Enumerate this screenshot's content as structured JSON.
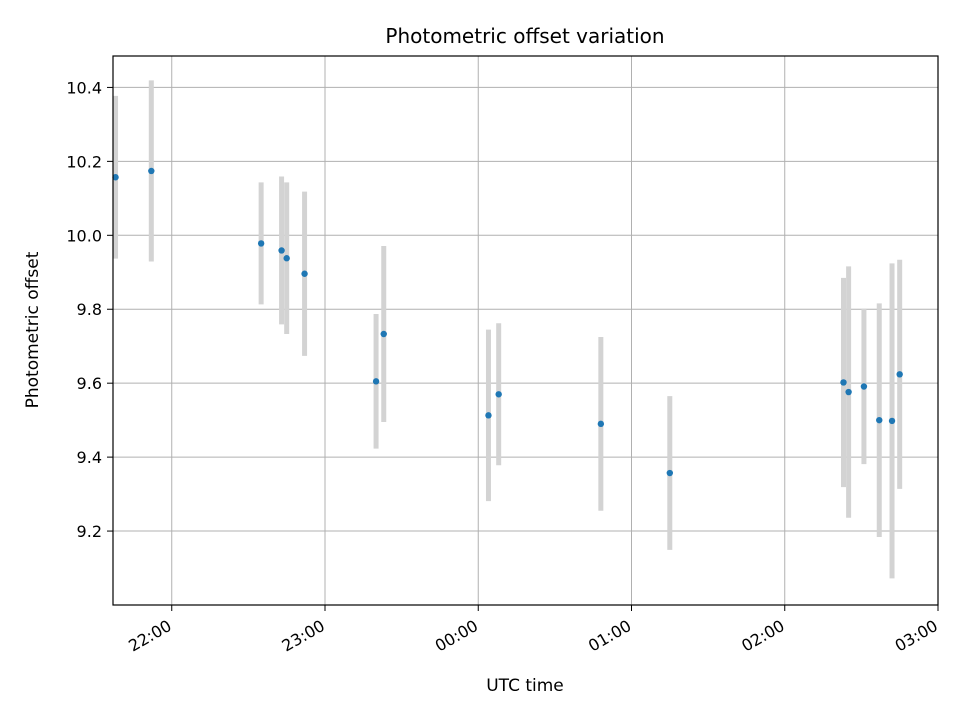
{
  "chart_data": {
    "type": "scatter",
    "title": "Photometric offset variation",
    "xlabel": "UTC time",
    "ylabel": "Photometric offset",
    "x_unit": "UTC time (HH:MM)",
    "xlim": [
      "21:37",
      "03:00"
    ],
    "ylim": [
      9.0,
      10.485
    ],
    "x_ticks": [
      "22:00",
      "23:00",
      "00:00",
      "01:00",
      "02:00",
      "03:00"
    ],
    "y_ticks": [
      9.2,
      9.4,
      9.6,
      9.8,
      10.0,
      10.2,
      10.4
    ],
    "y_tick_labels": [
      "9.2",
      "9.4",
      "9.6",
      "9.8",
      "10.0",
      "10.2",
      "10.4"
    ],
    "grid": true,
    "colors": {
      "point": "#1f77b4",
      "errorbar": "#d3d3d3",
      "grid": "#b0b0b0"
    },
    "points": [
      {
        "x": "21:38",
        "y": 10.157,
        "err": 0.22
      },
      {
        "x": "21:52",
        "y": 10.174,
        "err": 0.245
      },
      {
        "x": "22:35",
        "y": 9.978,
        "err": 0.165
      },
      {
        "x": "22:43",
        "y": 9.959,
        "err": 0.2
      },
      {
        "x": "22:45",
        "y": 9.938,
        "err": 0.205
      },
      {
        "x": "22:52",
        "y": 9.896,
        "err": 0.222
      },
      {
        "x": "23:20",
        "y": 9.605,
        "err": 0.182
      },
      {
        "x": "23:23",
        "y": 9.733,
        "err": 0.238
      },
      {
        "x": "00:04",
        "y": 9.513,
        "err": 0.232
      },
      {
        "x": "00:08",
        "y": 9.57,
        "err": 0.192
      },
      {
        "x": "00:48",
        "y": 9.49,
        "err": 0.235
      },
      {
        "x": "01:15",
        "y": 9.357,
        "err": 0.208
      },
      {
        "x": "02:23",
        "y": 9.602,
        "err": 0.283
      },
      {
        "x": "02:25",
        "y": 9.576,
        "err": 0.34
      },
      {
        "x": "02:31",
        "y": 9.591,
        "err": 0.21
      },
      {
        "x": "02:37",
        "y": 9.5,
        "err": 0.316
      },
      {
        "x": "02:42",
        "y": 9.498,
        "err": 0.426
      },
      {
        "x": "02:45",
        "y": 9.624,
        "err": 0.31
      }
    ]
  }
}
